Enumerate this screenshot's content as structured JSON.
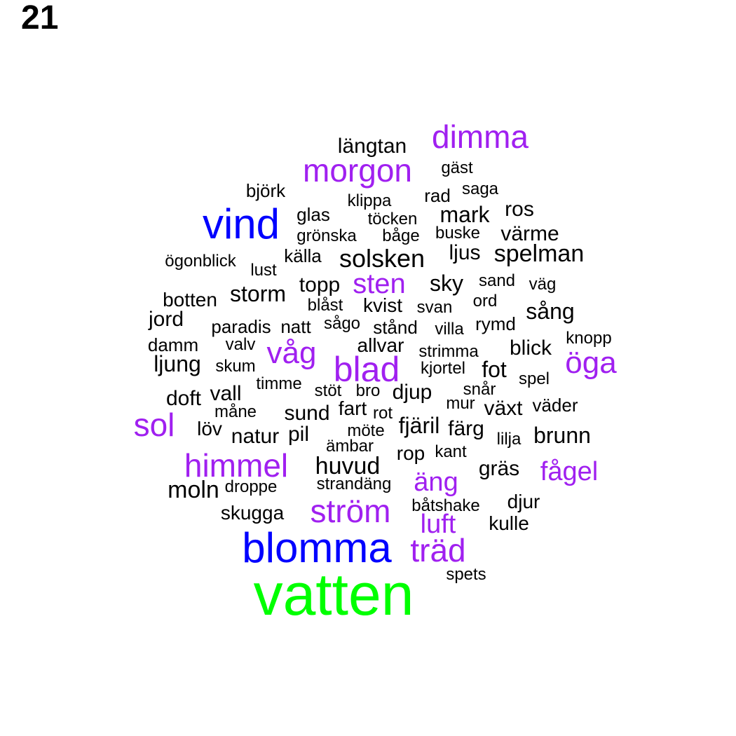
{
  "page_number": "21",
  "colors": {
    "black": "#000000",
    "purple": "#a020f0",
    "blue": "#0000ff",
    "green": "#00ff00"
  },
  "words": [
    {
      "text": "vatten",
      "color": "green"
    },
    {
      "text": "blomma",
      "color": "blue"
    },
    {
      "text": "vind",
      "color": "blue"
    },
    {
      "text": "dimma",
      "color": "purple"
    },
    {
      "text": "morgon",
      "color": "purple"
    },
    {
      "text": "blad",
      "color": "purple"
    },
    {
      "text": "sol",
      "color": "purple"
    },
    {
      "text": "himmel",
      "color": "purple"
    },
    {
      "text": "ström",
      "color": "purple"
    },
    {
      "text": "träd",
      "color": "purple"
    },
    {
      "text": "öga",
      "color": "purple"
    },
    {
      "text": "våg",
      "color": "purple"
    },
    {
      "text": "sten",
      "color": "purple"
    },
    {
      "text": "fågel",
      "color": "purple"
    },
    {
      "text": "äng",
      "color": "purple"
    },
    {
      "text": "luft",
      "color": "purple"
    },
    {
      "text": "längtan",
      "color": "black"
    },
    {
      "text": "gäst",
      "color": "black"
    },
    {
      "text": "björk",
      "color": "black"
    },
    {
      "text": "klippa",
      "color": "black"
    },
    {
      "text": "rad",
      "color": "black"
    },
    {
      "text": "saga",
      "color": "black"
    },
    {
      "text": "glas",
      "color": "black"
    },
    {
      "text": "töcken",
      "color": "black"
    },
    {
      "text": "mark",
      "color": "black"
    },
    {
      "text": "ros",
      "color": "black"
    },
    {
      "text": "grönska",
      "color": "black"
    },
    {
      "text": "båge",
      "color": "black"
    },
    {
      "text": "buske",
      "color": "black"
    },
    {
      "text": "värme",
      "color": "black"
    },
    {
      "text": "ögonblick",
      "color": "black"
    },
    {
      "text": "källa",
      "color": "black"
    },
    {
      "text": "solsken",
      "color": "black"
    },
    {
      "text": "ljus",
      "color": "black"
    },
    {
      "text": "spelman",
      "color": "black"
    },
    {
      "text": "lust",
      "color": "black"
    },
    {
      "text": "topp",
      "color": "black"
    },
    {
      "text": "sky",
      "color": "black"
    },
    {
      "text": "sand",
      "color": "black"
    },
    {
      "text": "väg",
      "color": "black"
    },
    {
      "text": "storm",
      "color": "black"
    },
    {
      "text": "botten",
      "color": "black"
    },
    {
      "text": "blåst",
      "color": "black"
    },
    {
      "text": "kvist",
      "color": "black"
    },
    {
      "text": "svan",
      "color": "black"
    },
    {
      "text": "ord",
      "color": "black"
    },
    {
      "text": "sång",
      "color": "black"
    },
    {
      "text": "jord",
      "color": "black"
    },
    {
      "text": "paradis",
      "color": "black"
    },
    {
      "text": "natt",
      "color": "black"
    },
    {
      "text": "sågo",
      "color": "black"
    },
    {
      "text": "stånd",
      "color": "black"
    },
    {
      "text": "villa",
      "color": "black"
    },
    {
      "text": "rymd",
      "color": "black"
    },
    {
      "text": "knopp",
      "color": "black"
    },
    {
      "text": "damm",
      "color": "black"
    },
    {
      "text": "valv",
      "color": "black"
    },
    {
      "text": "allvar",
      "color": "black"
    },
    {
      "text": "strimma",
      "color": "black"
    },
    {
      "text": "blick",
      "color": "black"
    },
    {
      "text": "ljung",
      "color": "black"
    },
    {
      "text": "skum",
      "color": "black"
    },
    {
      "text": "kjortel",
      "color": "black"
    },
    {
      "text": "fot",
      "color": "black"
    },
    {
      "text": "timme",
      "color": "black"
    },
    {
      "text": "spel",
      "color": "black"
    },
    {
      "text": "doft",
      "color": "black"
    },
    {
      "text": "vall",
      "color": "black"
    },
    {
      "text": "stöt",
      "color": "black"
    },
    {
      "text": "bro",
      "color": "black"
    },
    {
      "text": "djup",
      "color": "black"
    },
    {
      "text": "snår",
      "color": "black"
    },
    {
      "text": "måne",
      "color": "black"
    },
    {
      "text": "sund",
      "color": "black"
    },
    {
      "text": "fart",
      "color": "black"
    },
    {
      "text": "rot",
      "color": "black"
    },
    {
      "text": "mur",
      "color": "black"
    },
    {
      "text": "växt",
      "color": "black"
    },
    {
      "text": "väder",
      "color": "black"
    },
    {
      "text": "löv",
      "color": "black"
    },
    {
      "text": "natur",
      "color": "black"
    },
    {
      "text": "pil",
      "color": "black"
    },
    {
      "text": "möte",
      "color": "black"
    },
    {
      "text": "fjäril",
      "color": "black"
    },
    {
      "text": "färg",
      "color": "black"
    },
    {
      "text": "lilja",
      "color": "black"
    },
    {
      "text": "brunn",
      "color": "black"
    },
    {
      "text": "ämbar",
      "color": "black"
    },
    {
      "text": "rop",
      "color": "black"
    },
    {
      "text": "kant",
      "color": "black"
    },
    {
      "text": "huvud",
      "color": "black"
    },
    {
      "text": "gräs",
      "color": "black"
    },
    {
      "text": "moln",
      "color": "black"
    },
    {
      "text": "droppe",
      "color": "black"
    },
    {
      "text": "strandäng",
      "color": "black"
    },
    {
      "text": "djur",
      "color": "black"
    },
    {
      "text": "båtshake",
      "color": "black"
    },
    {
      "text": "skugga",
      "color": "black"
    },
    {
      "text": "kulle",
      "color": "black"
    },
    {
      "text": "spets",
      "color": "black"
    }
  ]
}
